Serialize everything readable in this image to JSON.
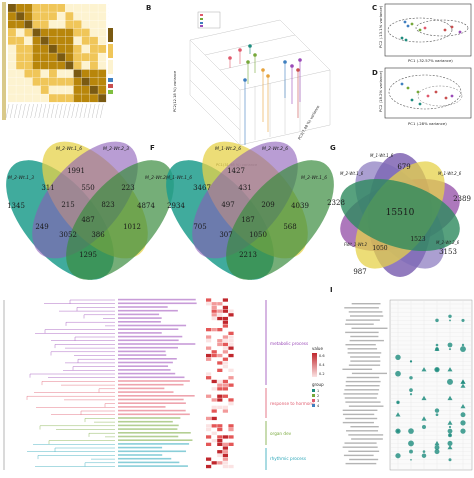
{
  "panel_letters": [
    "B",
    "C",
    "D",
    "F",
    "G",
    "I"
  ],
  "chart_data": [
    {
      "type": "heatmap",
      "panel": "A",
      "description_colors": [
        "#fdf3d0",
        "#f0c659",
        "#b8860b",
        "#7a5a12"
      ],
      "grid_size": 12
    },
    {
      "type": "scatter",
      "panel": "B",
      "xlabel": "PC1(31.98 %) variance",
      "ylabel": "PC2(12.18 %) variance",
      "zlabel": "PC3(7.48 %) variance"
    },
    {
      "type": "scatter",
      "panel": "C",
      "xlabel": "PC1 (.32.57% variance)",
      "ylabel": "PC2 (.13.1% variance)"
    },
    {
      "type": "scatter",
      "panel": "D",
      "xlabel": "PC1 (.28% variance)",
      "ylabel": "PC2 (18.2% variance)"
    },
    {
      "type": "venn",
      "panel": "E",
      "sets": [
        "M_2-Wt.1_3",
        "M_2-Wt.1_6",
        "M_2-Wt.2_3",
        "M_2-Wt.2_6"
      ],
      "regions": [
        "1345",
        "1991",
        "4874",
        "311",
        "550",
        "223",
        "215",
        "823",
        "487",
        "249",
        "3052",
        "386",
        "1012",
        "1295"
      ]
    },
    {
      "type": "venn",
      "panel": "F",
      "sets": [
        "M_1-Wt.1_6",
        "M_1-Wt.2_6",
        "M_2-Wt.2_6",
        "M_2-Wt.1_6"
      ],
      "regions": [
        "2934",
        "1427",
        "4039",
        "3467",
        "431",
        "497",
        "209",
        "187",
        "705",
        "307",
        "1050",
        "568",
        "2213"
      ]
    },
    {
      "type": "venn",
      "panel": "G",
      "sets": [
        "M_1-Wt.1_6",
        "M_2-Wt.1_6",
        "M_1-Wt.2_6",
        "M_2-Wt.2_6",
        "FWt_1-Wt.2"
      ],
      "regions": [
        "679",
        "2328",
        "2389",
        "15510",
        "3153",
        "987",
        "1523",
        "1050"
      ]
    },
    {
      "type": "heatmap",
      "panel": "H",
      "categories": [
        "metabolic process",
        "response to hormone",
        "organ dev",
        "rhythmic process"
      ],
      "legend_title": "value",
      "legend_values": [
        "0.6",
        "0.4",
        "0.2"
      ],
      "group_title": "group",
      "group_values": [
        "1",
        "2",
        "3",
        "4"
      ],
      "category_colors": [
        "#9a4ab8",
        "#e0596c",
        "#77a83a",
        "#28a5b8"
      ]
    },
    {
      "type": "scatter",
      "panel": "I",
      "colors": [
        "#1e8c7e"
      ]
    }
  ]
}
